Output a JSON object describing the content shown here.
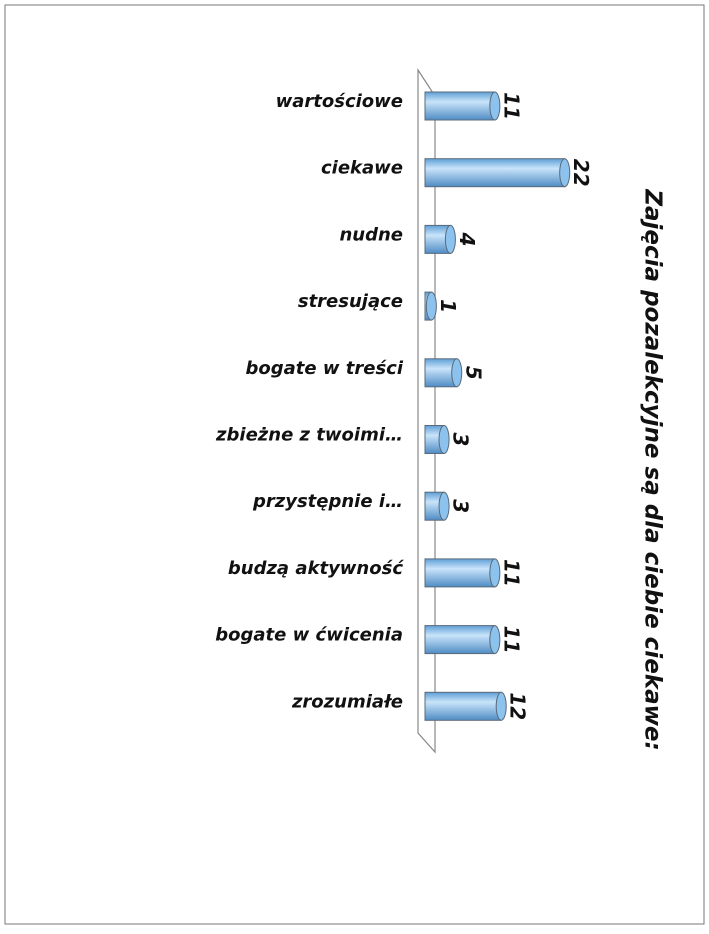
{
  "chart_data": {
    "type": "bar",
    "orientation": "horizontal",
    "title": "Zajęcia pozalekcyjne są dla ciebie ciekawe:",
    "categories": [
      "wartościowe",
      "ciekawe",
      "nudne",
      "stresujące",
      "bogate w treści",
      "zbieżne z twoimi…",
      "przystępnie i…",
      "budzą aktywność",
      "bogate w ćwicenia",
      "zrozumiałe"
    ],
    "values": [
      11,
      22,
      4,
      1,
      5,
      3,
      3,
      11,
      11,
      12
    ],
    "color": "#8cc2ee"
  }
}
